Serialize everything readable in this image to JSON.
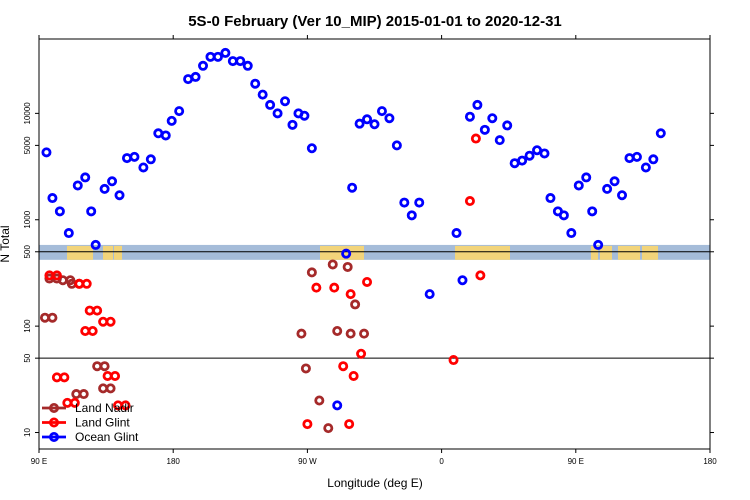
{
  "chart_data": {
    "type": "scatter",
    "title": "5S-0 February (Ver 10_MIP)   2015-01-01 to 2020-12-31",
    "xlabel": "Longitude (deg E)",
    "ylabel": "N Total",
    "xlim": [
      90,
      540
    ],
    "ylim": [
      7,
      50000
    ],
    "yscale": "log",
    "x_ticks": [
      {
        "value": 90,
        "label": "90 E"
      },
      {
        "value": 180,
        "label": "180"
      },
      {
        "value": 270,
        "label": "90 W"
      },
      {
        "value": 360,
        "label": "0"
      },
      {
        "value": 450,
        "label": "90 E"
      },
      {
        "value": 540,
        "label": "180"
      }
    ],
    "y_ticks": [
      {
        "value": 10,
        "label": "10"
      },
      {
        "value": 50,
        "label": "50"
      },
      {
        "value": 100,
        "label": "100"
      },
      {
        "value": 500,
        "label": "500"
      },
      {
        "value": 1000,
        "label": "1000"
      },
      {
        "value": 5000,
        "label": "5000"
      },
      {
        "value": 10000,
        "label": "10000"
      }
    ],
    "reference_lines": [
      500,
      50
    ],
    "land_band": {
      "min": 420,
      "max": 580,
      "ocean_color": "#a5bcd9",
      "land_color": "#f2d47a"
    },
    "legend_position": "bottom-left",
    "series": [
      {
        "name": "Land Nadir",
        "color": "#a52a2a",
        "points": [
          [
            99,
            120
          ],
          [
            102,
            280
          ],
          [
            111,
            270
          ],
          [
            117,
            250
          ],
          [
            120,
            23
          ],
          [
            134,
            42
          ],
          [
            138,
            26
          ],
          [
            94,
            120
          ],
          [
            97,
            280
          ],
          [
            106,
            270
          ],
          [
            112,
            250
          ],
          [
            115,
            23
          ],
          [
            129,
            42
          ],
          [
            133,
            26
          ],
          [
            266,
            85
          ],
          [
            269,
            40
          ],
          [
            273,
            320
          ],
          [
            278,
            20
          ],
          [
            284,
            11
          ],
          [
            287,
            380
          ],
          [
            290,
            90
          ],
          [
            297,
            360
          ],
          [
            299,
            85
          ],
          [
            302,
            160
          ],
          [
            308,
            85
          ]
        ]
      },
      {
        "name": "Land Glint",
        "color": "#ff0000",
        "points": [
          [
            102,
            300
          ],
          [
            107,
            33
          ],
          [
            114,
            19
          ],
          [
            122,
            250
          ],
          [
            126,
            90
          ],
          [
            129,
            140
          ],
          [
            138,
            110
          ],
          [
            141,
            34
          ],
          [
            148,
            18
          ],
          [
            97,
            300
          ],
          [
            102,
            33
          ],
          [
            109,
            19
          ],
          [
            117,
            250
          ],
          [
            121,
            90
          ],
          [
            124,
            140
          ],
          [
            133,
            110
          ],
          [
            136,
            34
          ],
          [
            143,
            18
          ],
          [
            270,
            12
          ],
          [
            276,
            230
          ],
          [
            288,
            230
          ],
          [
            294,
            42
          ],
          [
            298,
            12
          ],
          [
            299,
            200
          ],
          [
            301,
            34
          ],
          [
            306,
            55
          ],
          [
            310,
            260
          ],
          [
            368,
            48
          ],
          [
            379,
            1500
          ],
          [
            383,
            5800
          ],
          [
            386,
            300
          ]
        ]
      },
      {
        "name": "Ocean Glint",
        "color": "#0000ff",
        "points": [
          [
            95,
            4300
          ],
          [
            99,
            1600
          ],
          [
            104,
            1200
          ],
          [
            110,
            750
          ],
          [
            116,
            2100
          ],
          [
            121,
            2500
          ],
          [
            125,
            1200
          ],
          [
            128,
            580
          ],
          [
            134,
            1950
          ],
          [
            139,
            2300
          ],
          [
            144,
            1700
          ],
          [
            149,
            3800
          ],
          [
            154,
            3900
          ],
          [
            160,
            3100
          ],
          [
            165,
            3700
          ],
          [
            170,
            6500
          ],
          [
            175,
            6200
          ],
          [
            179,
            8500
          ],
          [
            184,
            10500
          ],
          [
            190,
            21000
          ],
          [
            195,
            22000
          ],
          [
            200,
            28000
          ],
          [
            205,
            34000
          ],
          [
            210,
            34000
          ],
          [
            215,
            37000
          ],
          [
            220,
            31000
          ],
          [
            225,
            31000
          ],
          [
            230,
            28000
          ],
          [
            235,
            19000
          ],
          [
            240,
            15000
          ],
          [
            245,
            12000
          ],
          [
            250,
            10000
          ],
          [
            255,
            13000
          ],
          [
            260,
            7800
          ],
          [
            264,
            10000
          ],
          [
            268,
            9500
          ],
          [
            273,
            4700
          ],
          [
            290,
            18
          ],
          [
            296,
            480
          ],
          [
            300,
            2000
          ],
          [
            305,
            8000
          ],
          [
            310,
            8800
          ],
          [
            315,
            7900
          ],
          [
            320,
            10500
          ],
          [
            325,
            9000
          ],
          [
            330,
            5000
          ],
          [
            335,
            1450
          ],
          [
            340,
            1100
          ],
          [
            345,
            1450
          ],
          [
            352,
            200
          ],
          [
            370,
            750
          ],
          [
            374,
            270
          ],
          [
            379,
            9300
          ],
          [
            384,
            12000
          ],
          [
            389,
            7000
          ],
          [
            394,
            9000
          ],
          [
            399,
            5600
          ],
          [
            404,
            7700
          ],
          [
            409,
            3400
          ],
          [
            414,
            3600
          ],
          [
            419,
            4000
          ],
          [
            424,
            4500
          ],
          [
            429,
            4200
          ],
          [
            433,
            1600
          ],
          [
            438,
            1200
          ],
          [
            442,
            1100
          ],
          [
            447,
            750
          ],
          [
            452,
            2100
          ],
          [
            457,
            2500
          ],
          [
            461,
            1200
          ],
          [
            465,
            580
          ],
          [
            471,
            1950
          ],
          [
            476,
            2300
          ],
          [
            481,
            1700
          ],
          [
            486,
            3800
          ],
          [
            491,
            3900
          ],
          [
            497,
            3100
          ],
          [
            502,
            3700
          ],
          [
            507,
            6500
          ]
        ]
      }
    ]
  }
}
